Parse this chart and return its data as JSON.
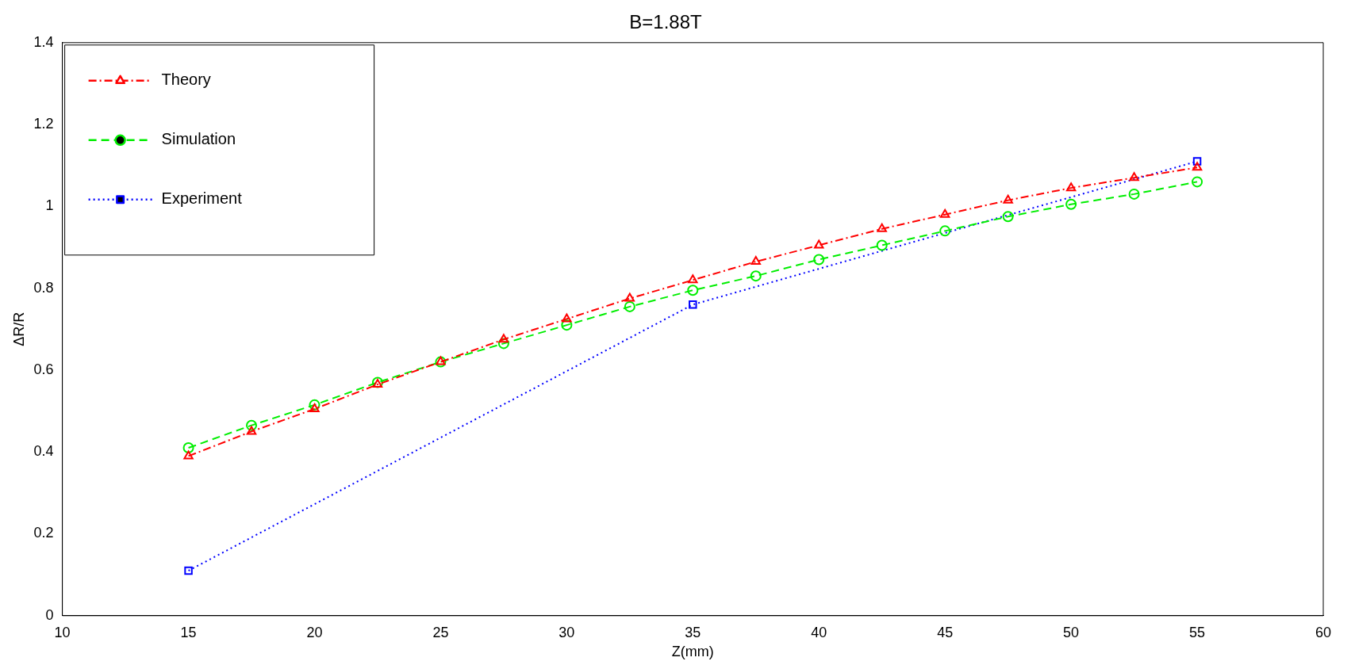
{
  "chart_data": {
    "type": "line",
    "title": "B=1.88T",
    "xlabel": "Z(mm)",
    "ylabel": "ΔR/R",
    "xlim": [
      10,
      60
    ],
    "xticks": [
      10,
      15,
      20,
      25,
      30,
      35,
      40,
      45,
      50,
      55,
      60
    ],
    "ylim": [
      0,
      1.4
    ],
    "yticks": [
      0,
      0.2,
      0.4,
      0.6,
      0.8,
      1,
      1.2,
      1.4
    ],
    "grid": false,
    "legend": "top left",
    "series": [
      {
        "name": "Theory",
        "color": "#ff0000",
        "marker": "triangle",
        "line_style": "dashdot",
        "x": [
          15,
          17.5,
          20,
          22.5,
          25,
          27.5,
          30,
          32.5,
          35,
          37.5,
          40,
          42.5,
          45,
          47.5,
          50,
          52.5,
          55
        ],
        "values": [
          0.39,
          0.45,
          0.505,
          0.565,
          0.62,
          0.675,
          0.725,
          0.775,
          0.82,
          0.865,
          0.905,
          0.945,
          0.98,
          1.015,
          1.045,
          1.07,
          1.095
        ]
      },
      {
        "name": "Simulation",
        "color": "#00ee00",
        "marker": "circle",
        "line_style": "dashed",
        "x": [
          15,
          17.5,
          20,
          22.5,
          25,
          27.5,
          30,
          32.5,
          35,
          37.5,
          40,
          42.5,
          45,
          47.5,
          50,
          52.5,
          55
        ],
        "values": [
          0.41,
          0.465,
          0.515,
          0.57,
          0.62,
          0.665,
          0.71,
          0.755,
          0.795,
          0.83,
          0.87,
          0.905,
          0.94,
          0.975,
          1.005,
          1.03,
          1.06
        ]
      },
      {
        "name": "Experiment",
        "color": "#0000ff",
        "marker": "square",
        "line_style": "dotted",
        "x": [
          15,
          35,
          55
        ],
        "values": [
          0.11,
          0.76,
          1.11
        ]
      }
    ]
  }
}
